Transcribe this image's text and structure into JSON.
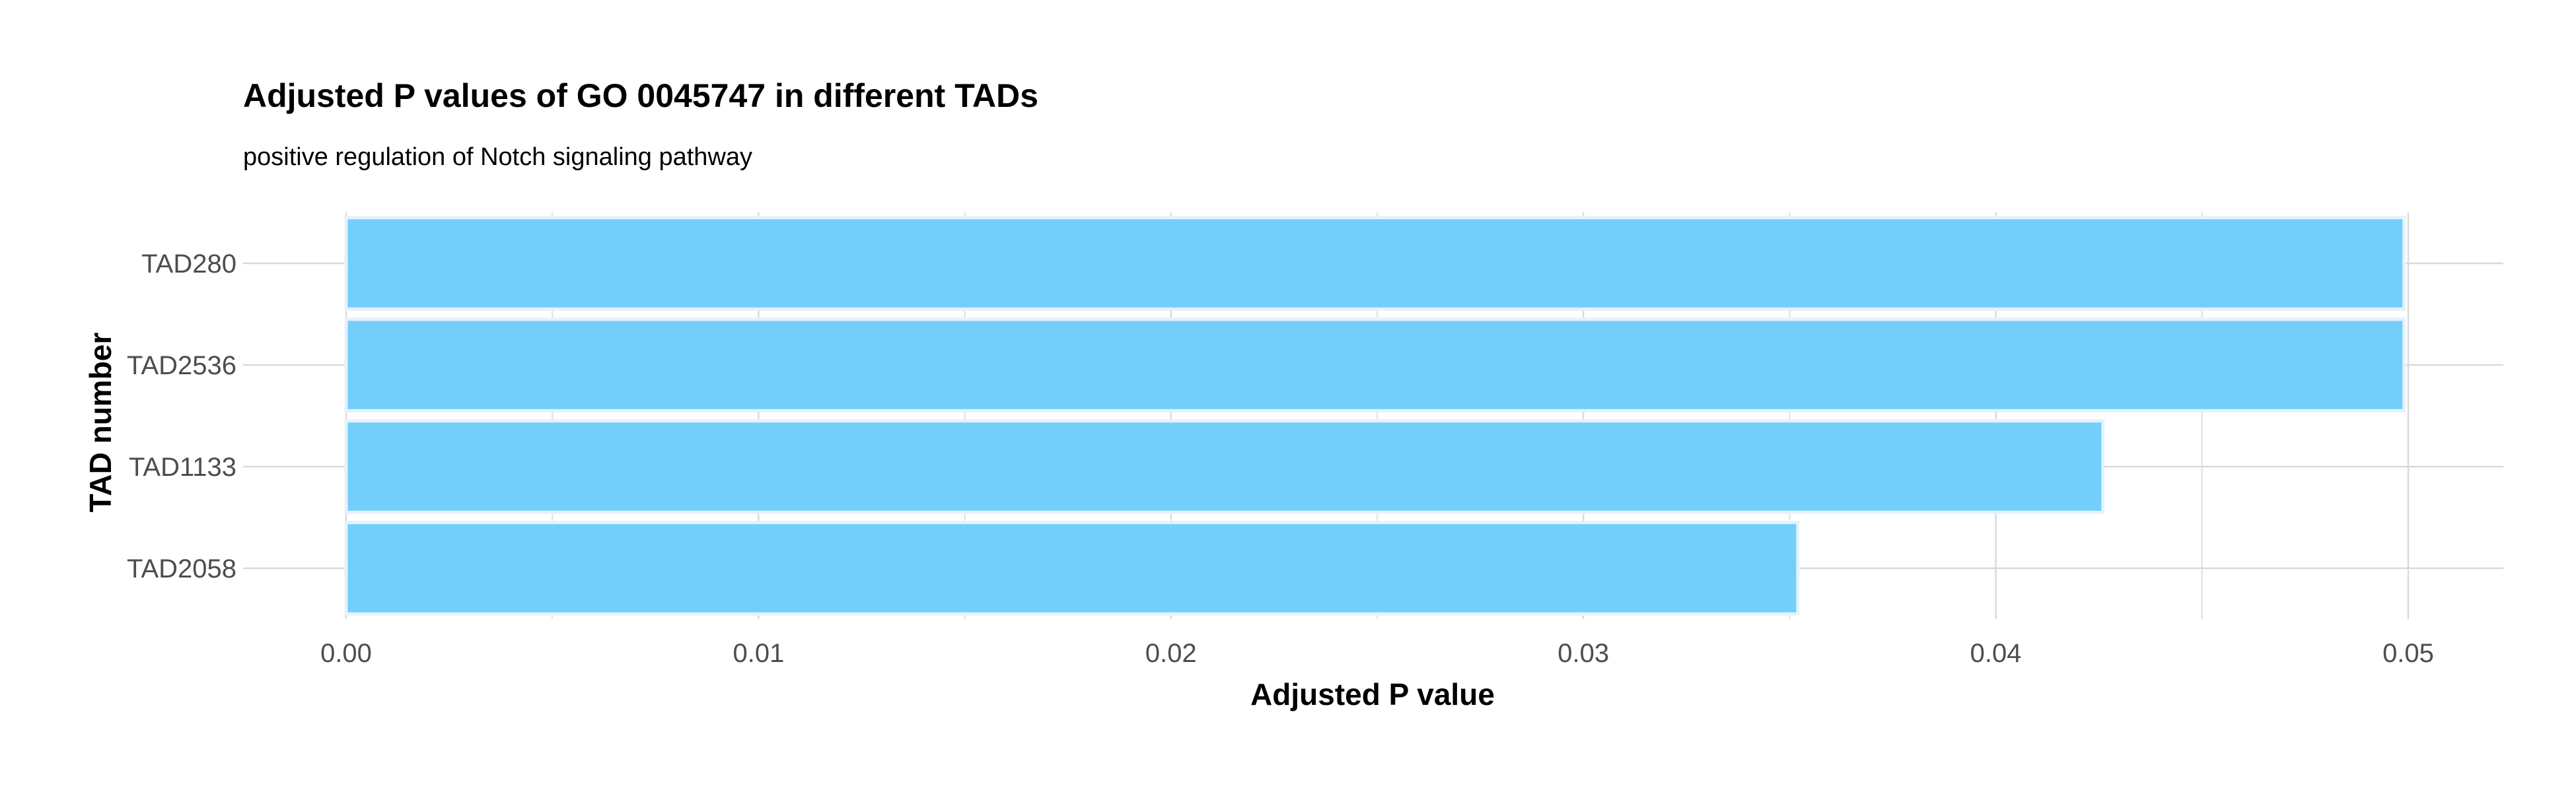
{
  "chart_data": {
    "type": "bar",
    "orientation": "horizontal",
    "title": "Adjusted P values of GO 0045747 in different TADs",
    "subtitle": "positive regulation of Notch signaling pathway",
    "xlabel": "Adjusted P value",
    "ylabel": "TAD number",
    "categories": [
      "TAD280",
      "TAD2536",
      "TAD1133",
      "TAD2058"
    ],
    "values": [
      0.0499,
      0.0499,
      0.0426,
      0.0352
    ],
    "xlim": [
      0,
      0.0524
    ],
    "xticks": [
      0.0,
      0.01,
      0.02,
      0.03,
      0.04,
      0.05
    ],
    "xtick_labels": [
      "0.00",
      "0.01",
      "0.02",
      "0.03",
      "0.04",
      "0.05"
    ],
    "grid": true,
    "legend": "none",
    "bar_color": "#74cefb"
  }
}
